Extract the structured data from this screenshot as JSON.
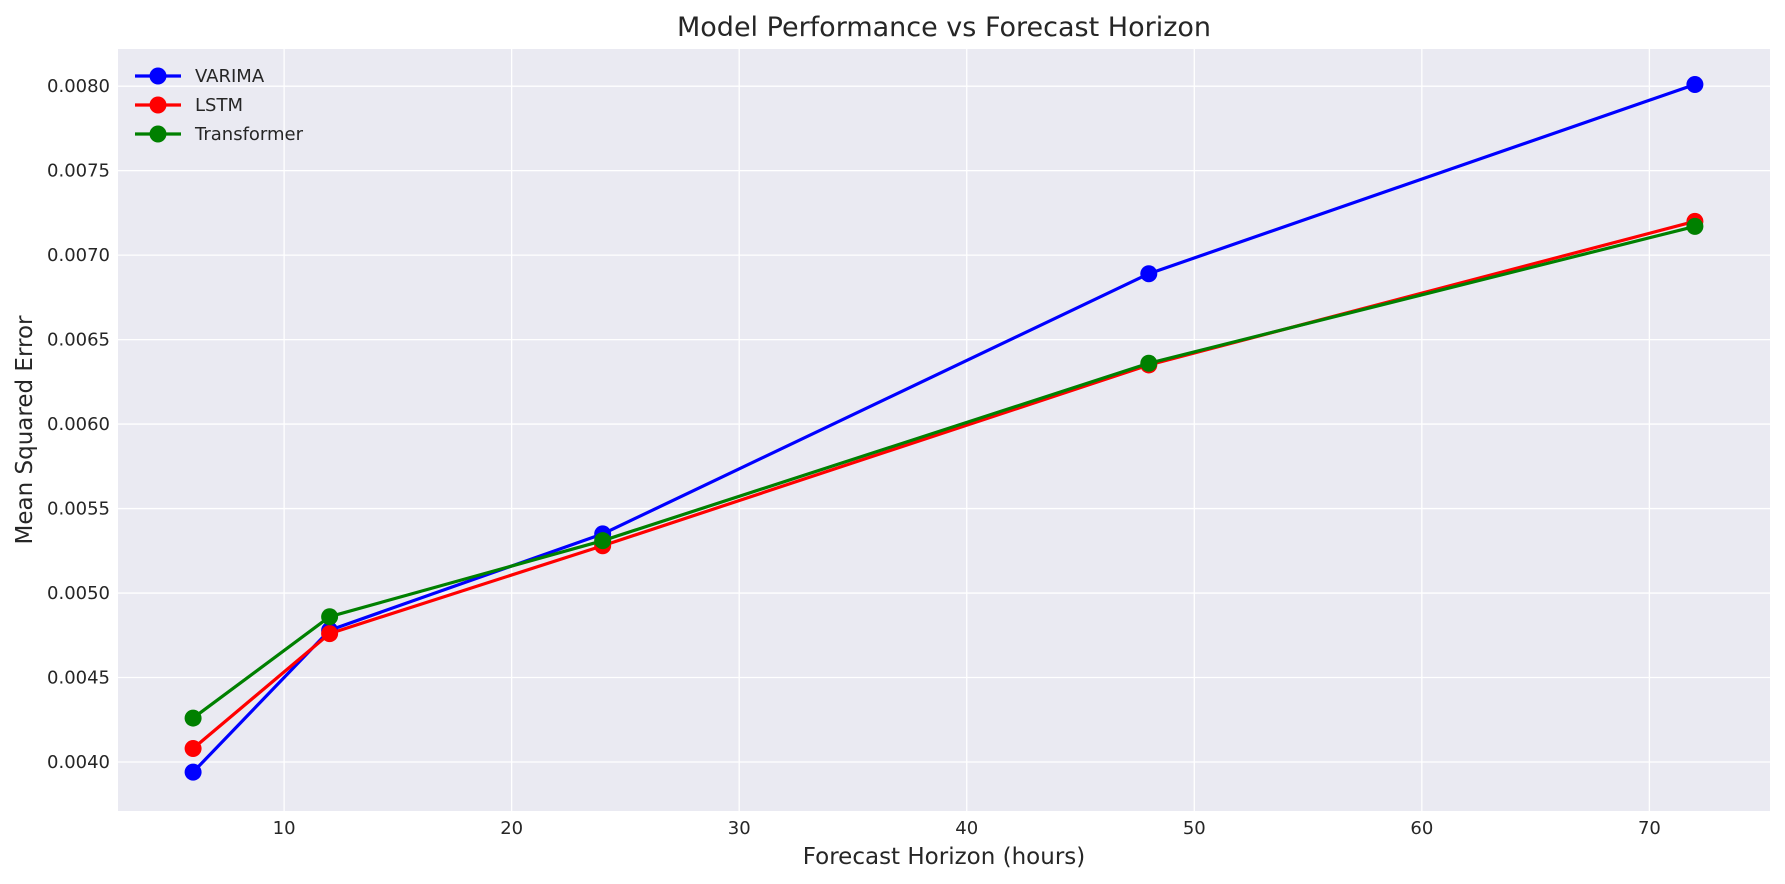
{
  "chart_data": {
    "type": "line",
    "title": "Model Performance vs Forecast Horizon",
    "xlabel": "Forecast Horizon (hours)",
    "ylabel": "Mean Squared Error",
    "x": [
      6,
      12,
      24,
      48,
      72
    ],
    "xlim": [
      2.7,
      75.3
    ],
    "ylim": [
      0.00371,
      0.00822
    ],
    "xticks": [
      10,
      20,
      30,
      40,
      50,
      60,
      70
    ],
    "xtick_labels": [
      "10",
      "20",
      "30",
      "40",
      "50",
      "60",
      "70"
    ],
    "yticks": [
      0.004,
      0.0045,
      0.005,
      0.0055,
      0.006,
      0.0065,
      0.007,
      0.0075,
      0.008
    ],
    "ytick_labels": [
      "0.0040",
      "0.0045",
      "0.0050",
      "0.0055",
      "0.0060",
      "0.0065",
      "0.0070",
      "0.0075",
      "0.0080"
    ],
    "grid": true,
    "legend_position": "top-left",
    "series": [
      {
        "name": "VARIMA",
        "color": "#0000ff",
        "values": [
          0.00394,
          0.00478,
          0.00535,
          0.00689,
          0.00801
        ]
      },
      {
        "name": "LSTM",
        "color": "#ff0000",
        "values": [
          0.00408,
          0.00476,
          0.00528,
          0.00635,
          0.0072
        ]
      },
      {
        "name": "Transformer",
        "color": "#008000",
        "values": [
          0.00426,
          0.00486,
          0.00531,
          0.00636,
          0.00717
        ]
      }
    ]
  }
}
